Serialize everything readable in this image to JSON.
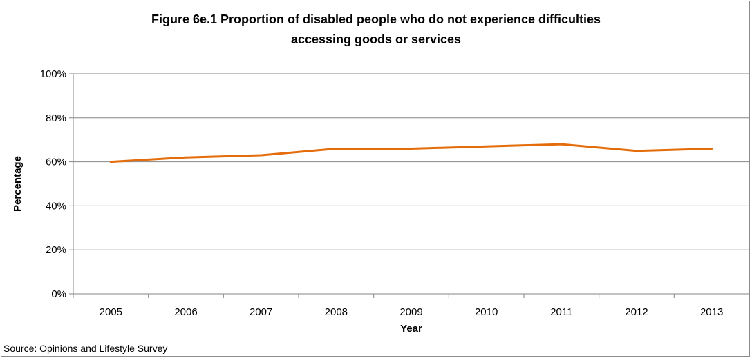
{
  "chart_data": {
    "type": "line",
    "title_lines": [
      "Figure 6e.1 Proportion of disabled people who do not experience difficulties",
      "accessing goods or services"
    ],
    "xlabel": "Year",
    "ylabel": "Percentage",
    "categories": [
      "2005",
      "2006",
      "2007",
      "2008",
      "2009",
      "2010",
      "2011",
      "2012",
      "2013"
    ],
    "series": [
      {
        "values": [
          60,
          62,
          63,
          66,
          66,
          67,
          68,
          65,
          66
        ],
        "color": "#E46C0A"
      }
    ],
    "ylim": [
      0,
      100
    ],
    "yticks": [
      0,
      20,
      40,
      60,
      80,
      100
    ],
    "ytick_labels": [
      "0%",
      "20%",
      "40%",
      "60%",
      "80%",
      "100%"
    ],
    "grid": true,
    "legend": "none"
  },
  "source": "Source: Opinions and Lifestyle Survey"
}
